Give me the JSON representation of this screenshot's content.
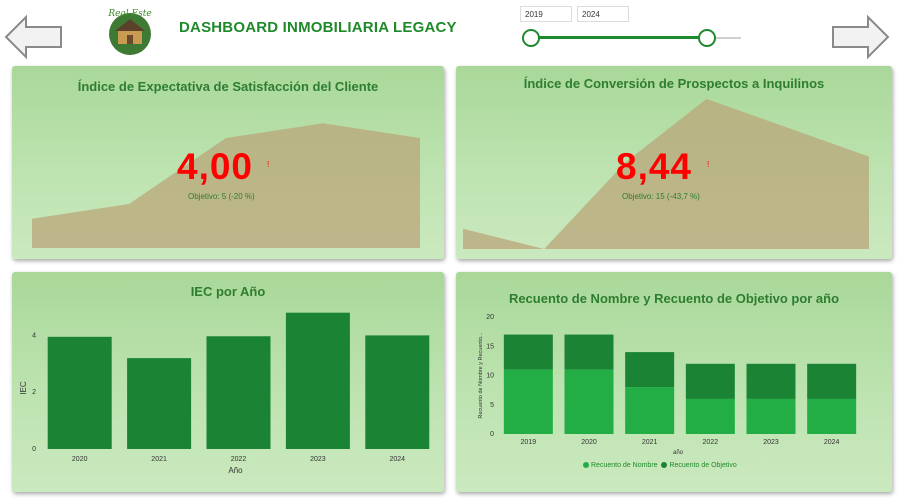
{
  "header": {
    "title": "DASHBOARD INMOBILIARIA LEGACY",
    "logo_text": "Real Estate",
    "prev_icon": "arrow-left-icon",
    "next_icon": "arrow-right-icon"
  },
  "year_filter": {
    "from": "2019",
    "to": "2024",
    "range": [
      2019,
      2024
    ]
  },
  "kpi_satisfaction": {
    "title": "Índice de Expectativa de Satisfacción del Cliente",
    "value": "4,00",
    "flag": "!",
    "goal": "Objetivo: 5 (-20 %)",
    "trend": [
      2.9,
      3.1,
      4.0,
      4.2,
      4.0
    ]
  },
  "kpi_conversion": {
    "title": "Índice de Conversión de Prospectos a Inquilinos",
    "value": "8,44",
    "flag": "!",
    "goal": "Objetivo: 15 (-43,7 %)",
    "trend": [
      5.5,
      4.8,
      7.8,
      10.0,
      9.0,
      8.0
    ]
  },
  "colors": {
    "dark_green": "#1a8434",
    "bright_green": "#22ad45",
    "kpi_red": "#ff0000",
    "area_fill": "#b9a67a"
  },
  "chart_data": [
    {
      "type": "bar",
      "title": "IEC por Año",
      "xlabel": "Año",
      "ylabel": "IEC",
      "categories": [
        "2020",
        "2021",
        "2022",
        "2023",
        "2024"
      ],
      "values": [
        3.95,
        3.2,
        3.97,
        4.8,
        4.0
      ],
      "ylim": [
        0,
        5
      ],
      "yticks": [
        "0",
        "2",
        "4"
      ],
      "grid": false
    },
    {
      "type": "bar",
      "stacked": true,
      "title": "Recuento de Nombre y Recuento de Objetivo por año",
      "xlabel": "año",
      "ylabel": "Recuento de Nombre y Recuento...",
      "categories": [
        "2019",
        "2020",
        "2021",
        "2022",
        "2023",
        "2024"
      ],
      "ylim": [
        0,
        20
      ],
      "yticks": [
        "0",
        "5",
        "10",
        "15",
        "20"
      ],
      "series": [
        {
          "name": "Recuento de Nombre",
          "values": [
            11,
            11,
            8,
            6,
            6,
            6
          ]
        },
        {
          "name": "Recuento de Objetivo",
          "values": [
            6,
            6,
            6,
            6,
            6,
            6
          ]
        }
      ],
      "legend": "bottom"
    }
  ]
}
